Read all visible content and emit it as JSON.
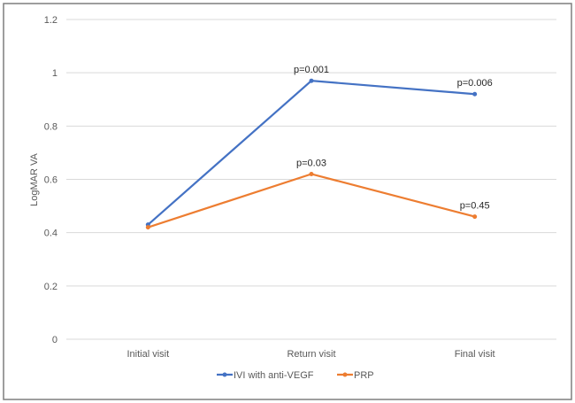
{
  "chart_data": {
    "type": "line",
    "title": "",
    "xlabel": "",
    "ylabel": "LogMAR VA",
    "ylim": [
      0,
      1.2
    ],
    "yticks": [
      "0",
      "0.2",
      "0.4",
      "0.6",
      "0.8",
      "1",
      "1.2"
    ],
    "categories": [
      "Initial visit",
      "Return visit",
      "Final visit"
    ],
    "grid": true,
    "legend": "bottom",
    "series": [
      {
        "name": "IVI with anti-VEGF",
        "color": "#4472C4",
        "values": [
          0.43,
          0.97,
          0.92
        ],
        "annotations": [
          "",
          "p=0.001",
          "p=0.006"
        ]
      },
      {
        "name": "PRP",
        "color": "#ED7D31",
        "values": [
          0.42,
          0.62,
          0.46
        ],
        "annotations": [
          "",
          "p=0.03",
          "p=0.45"
        ]
      }
    ]
  }
}
